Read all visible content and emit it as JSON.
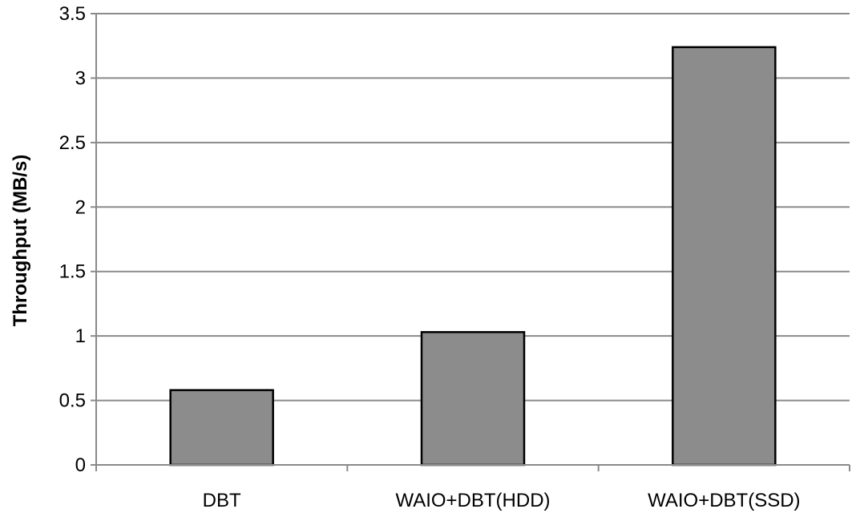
{
  "chart_data": {
    "type": "bar",
    "title": "",
    "xlabel": "",
    "ylabel": "Throughput (MB/s)",
    "categories": [
      "DBT",
      "WAIO+DBT(HDD)",
      "WAIO+DBT(SSD)"
    ],
    "values": [
      0.58,
      1.03,
      3.24
    ],
    "ylim": [
      0,
      3.5
    ],
    "yticks": [
      "0",
      "0.5",
      "1",
      "1.5",
      "2",
      "2.5",
      "3",
      "3.5"
    ],
    "grid": "horizontal major gridlines",
    "legend": "none",
    "colors": {
      "bar_fill": "#8c8c8c",
      "bar_stroke": "#000000",
      "grid": "#8a8a8a",
      "axis": "#8a8a8a",
      "text": "#000000"
    }
  }
}
